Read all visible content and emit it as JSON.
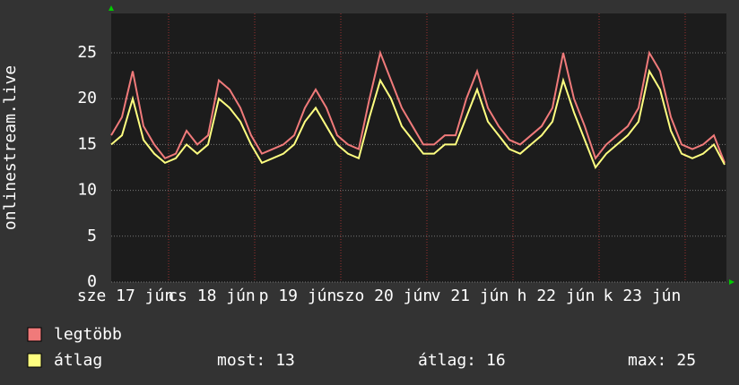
{
  "chart_data": {
    "type": "line",
    "y_label": "onlinestream.live",
    "x": [
      0,
      3,
      6,
      9,
      12,
      15,
      18,
      21,
      24,
      27,
      30,
      33,
      36,
      39,
      42,
      45,
      48,
      51,
      54,
      57,
      60,
      63,
      66,
      69,
      72,
      75,
      78,
      81,
      84,
      87,
      90,
      93,
      96,
      99,
      102,
      105,
      108,
      111,
      114,
      117,
      120,
      123,
      126,
      129,
      132,
      135,
      138,
      141,
      144,
      147,
      150,
      153,
      156,
      159,
      162,
      165,
      168,
      171
    ],
    "xlim": [
      0,
      171.5
    ],
    "xticks": [
      {
        "value": 4,
        "label": "sze 17 jún"
      },
      {
        "value": 28,
        "label": "cs 18 jún"
      },
      {
        "value": 52,
        "label": "p 19 jún"
      },
      {
        "value": 76,
        "label": "szo 20 jún"
      },
      {
        "value": 100,
        "label": "v 21 jún"
      },
      {
        "value": 124,
        "label": "h 22 jún"
      },
      {
        "value": 148,
        "label": "k 23 jún"
      }
    ],
    "ylim": [
      0,
      29.3
    ],
    "yticks": [
      0,
      5,
      10,
      15,
      20,
      25
    ],
    "grid": true,
    "series": [
      {
        "name": "legtöbb",
        "color": "#f07a7a",
        "values": [
          16,
          18,
          23,
          17,
          15,
          13.5,
          14,
          16.5,
          15,
          16,
          22,
          21,
          19,
          16,
          14,
          14.5,
          15,
          16,
          19,
          21,
          19,
          16,
          15,
          14.5,
          20,
          25,
          22,
          19,
          17,
          15,
          15,
          16,
          16,
          20,
          23,
          19,
          17,
          15.5,
          15,
          16,
          17,
          19,
          25,
          20,
          17,
          13.5,
          15,
          16,
          17,
          19,
          25,
          23,
          18,
          15,
          14.5,
          15,
          16,
          13
        ]
      },
      {
        "name": "átlag",
        "color": "#ffff80",
        "values": [
          15,
          16,
          20,
          15.5,
          14,
          13,
          13.5,
          15,
          14,
          15,
          20,
          19,
          17.5,
          15,
          13,
          13.5,
          14,
          15,
          17.5,
          19,
          17,
          15,
          14,
          13.5,
          18,
          22,
          20,
          17,
          15.5,
          14,
          14,
          15,
          15,
          18,
          21,
          17.5,
          16,
          14.5,
          14,
          15,
          16,
          17.5,
          22,
          18.5,
          15.5,
          12.5,
          14,
          15,
          16,
          17.5,
          23,
          21,
          16.5,
          14,
          13.5,
          14,
          15,
          12.8
        ]
      }
    ],
    "summary": [
      {
        "label": "most:",
        "value": 13
      },
      {
        "label": "átlag:",
        "value": 16
      },
      {
        "label": "max:",
        "value": 25
      }
    ]
  }
}
